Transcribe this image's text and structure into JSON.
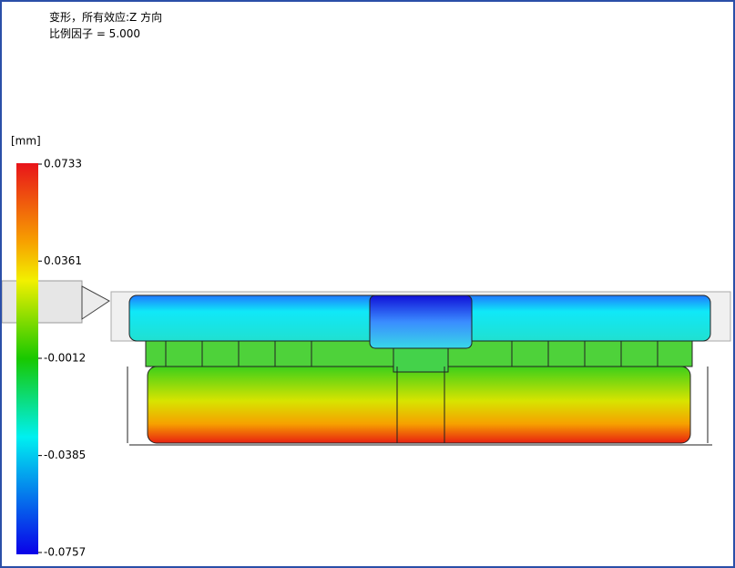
{
  "header": {
    "title": "变形，所有效应:Z 方向",
    "scale": "比例因子 = 5.000"
  },
  "legend": {
    "unit": "[mm]",
    "ticks": [
      0.0733,
      0.0361,
      -0.0012,
      -0.0385,
      -0.0757
    ]
  }
}
